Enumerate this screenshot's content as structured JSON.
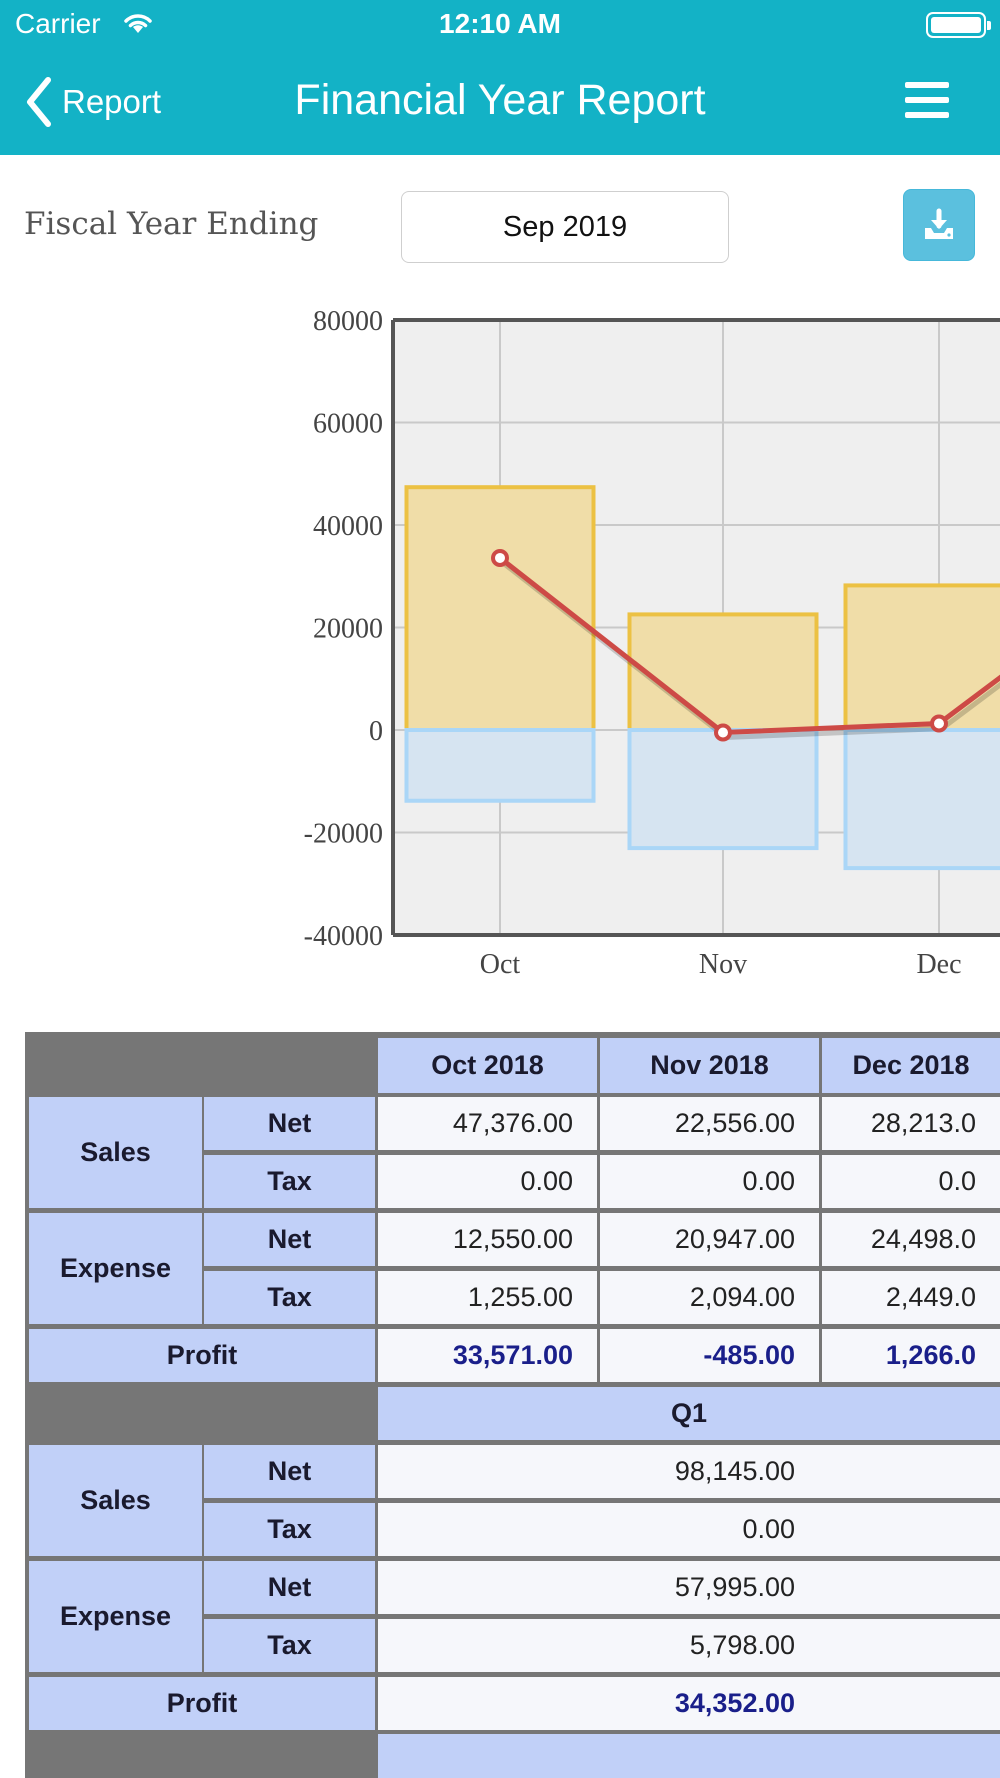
{
  "status_bar": {
    "carrier": "Carrier",
    "time": "12:10 AM"
  },
  "nav": {
    "back_label": "Report",
    "title": "Financial Year Report",
    "menu_icon": "hamburger-menu-icon",
    "back_icon": "chevron-left-icon"
  },
  "filter": {
    "label": "Fiscal Year Ending",
    "selected": "Sep 2019",
    "download_icon": "download-icon"
  },
  "colors": {
    "header": "#13b2c6",
    "sales_bar": "#f0dda8",
    "sales_border": "#ecc143",
    "expense_bar": "#d6e4f1",
    "expense_border": "#aad6f7",
    "profit_line": "#cd4a46",
    "table_header": "#c1d0f8"
  },
  "chart_data": {
    "type": "bar",
    "categories": [
      "Oct",
      "Nov",
      "Dec"
    ],
    "series": [
      {
        "values": [
          47376,
          22556,
          28213
        ],
        "type": "bar"
      },
      {
        "values": [
          -13805,
          -23041,
          -26947
        ],
        "type": "bar"
      },
      {
        "values": [
          33571,
          -485,
          1266
        ],
        "type": "line"
      }
    ],
    "y_ticks": [
      "80000",
      "60000",
      "40000",
      "20000",
      "0",
      "-20000",
      "-40000"
    ],
    "ylim": [
      -40000,
      80000
    ],
    "grid": true
  },
  "table": {
    "month_headers": [
      "Oct 2018",
      "Nov 2018",
      "Dec 2018"
    ],
    "labels": {
      "sales": "Sales",
      "expense": "Expense",
      "net": "Net",
      "tax": "Tax",
      "profit": "Profit"
    },
    "sales_net": [
      "47,376.00",
      "22,556.00",
      "28,213.0"
    ],
    "sales_tax": [
      "0.00",
      "0.00",
      "0.0"
    ],
    "expense_net": [
      "12,550.00",
      "20,947.00",
      "24,498.0"
    ],
    "expense_tax": [
      "1,255.00",
      "2,094.00",
      "2,449.0"
    ],
    "profit": [
      "33,571.00",
      "-485.00",
      "1,266.0"
    ],
    "quarter": {
      "header": "Q1",
      "sales_net": "98,145.00",
      "sales_tax": "0.00",
      "expense_net": "57,995.00",
      "expense_tax": "5,798.00",
      "profit": "34,352.00"
    }
  }
}
